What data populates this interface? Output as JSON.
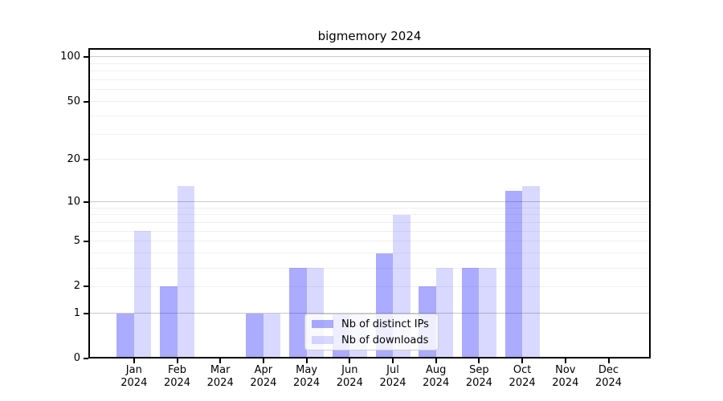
{
  "figure": {
    "title": "bigmemory 2024",
    "background": "#ffffff"
  },
  "chart_data": {
    "type": "bar",
    "title": "bigmemory 2024",
    "categories": [
      "Jan 2024",
      "Feb 2024",
      "Mar 2024",
      "Apr 2024",
      "May 2024",
      "Jun 2024",
      "Jul 2024",
      "Aug 2024",
      "Sep 2024",
      "Oct 2024",
      "Nov 2024",
      "Dec 2024"
    ],
    "series": [
      {
        "name": "Nb of distinct IPs",
        "color": "rgba(0,0,255,0.33)",
        "values": [
          1,
          2,
          0,
          1,
          3,
          1,
          4,
          2,
          3,
          12,
          0,
          0
        ]
      },
      {
        "name": "Nb of downloads",
        "color": "rgba(0,0,255,0.15)",
        "values": [
          6,
          13,
          0,
          1,
          3,
          1,
          8,
          3,
          3,
          13,
          0,
          0
        ]
      }
    ],
    "xlabel": "",
    "ylabel": "",
    "yscale": "log1p",
    "ylim": [
      0,
      115
    ],
    "yticks": [
      0,
      1,
      2,
      5,
      10,
      20,
      50,
      100
    ],
    "ytick_labels": [
      "0",
      "1",
      "2",
      "5",
      "10",
      "20",
      "50",
      "100"
    ],
    "major_gridlines": [
      1,
      10,
      100
    ],
    "minor_gridlines": [
      2,
      3,
      4,
      5,
      6,
      7,
      8,
      9,
      20,
      30,
      40,
      50,
      60,
      70,
      80,
      90
    ],
    "grid": "horizontal",
    "legend_position": "lower-center inside plot",
    "colors": {
      "axis": "#000000",
      "major_grid": "#c9c9c9",
      "minor_grid": "#f0f0f0",
      "distinct_ips_bar": "#aaaaf8",
      "downloads_bar": "#dadaf8"
    }
  }
}
